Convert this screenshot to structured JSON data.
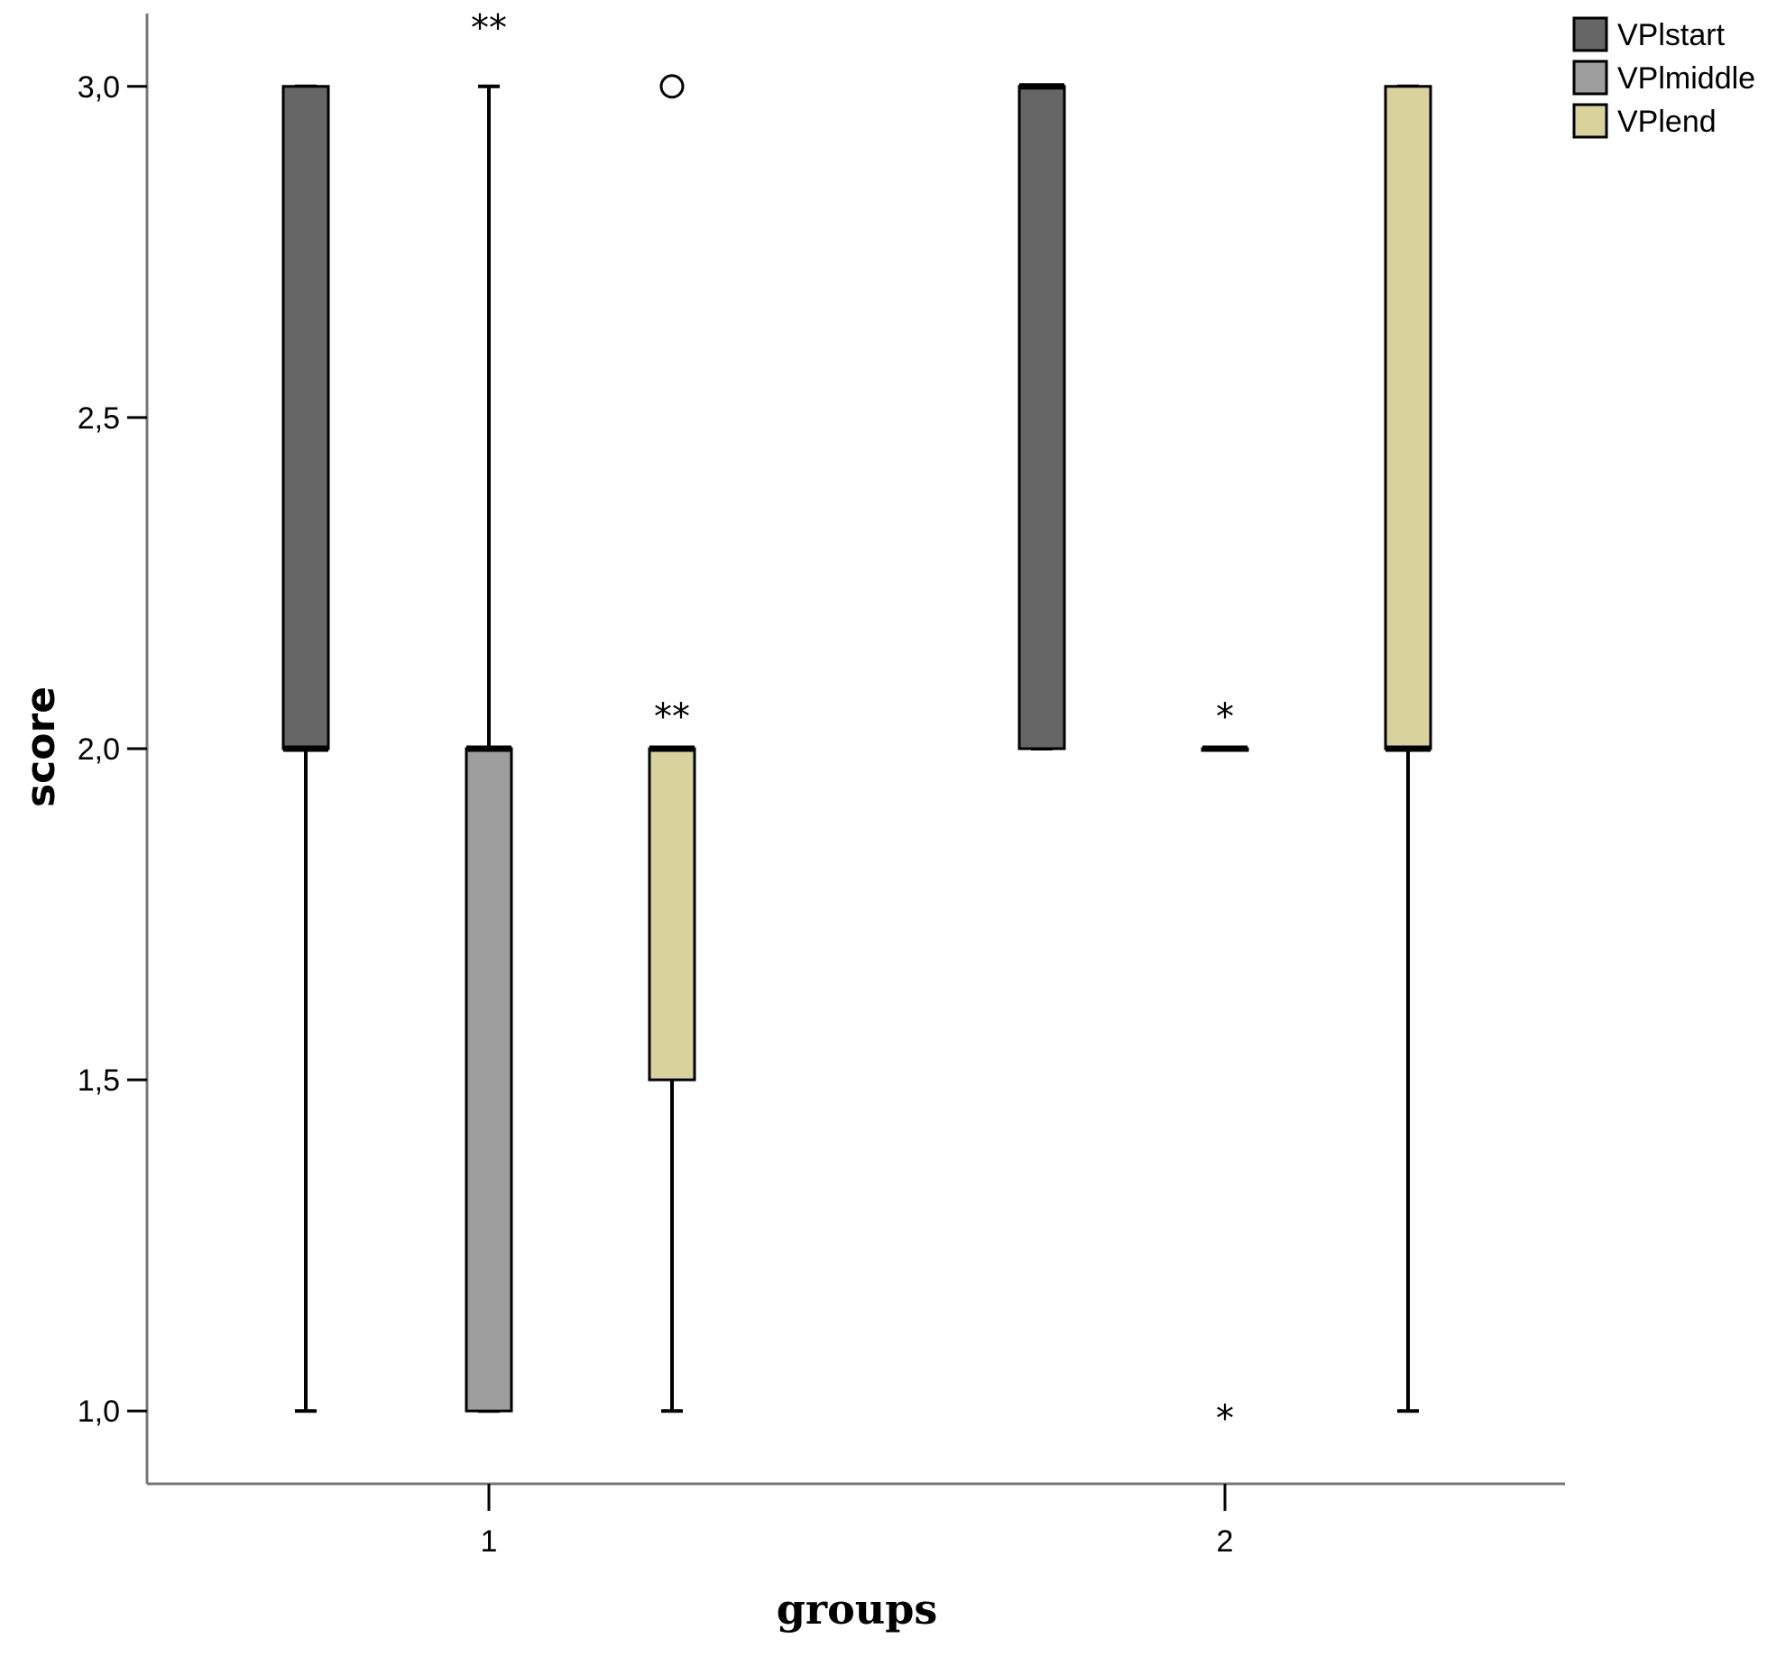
{
  "chart_data": {
    "type": "boxplot",
    "title": "",
    "xlabel": "groups",
    "ylabel": "score",
    "ylim": [
      0.89,
      3.11
    ],
    "yticks": [
      "1,0",
      "1,5",
      "2,0",
      "2,5",
      "3,0"
    ],
    "ytick_values": [
      1.0,
      1.5,
      2.0,
      2.5,
      3.0
    ],
    "categories": [
      "1",
      "2"
    ],
    "legend_position": "top-right",
    "series": [
      {
        "name": "VPlstart",
        "color": "#666666",
        "boxes": [
          {
            "min": 1.0,
            "q1": 2.0,
            "median": 2.0,
            "q3": 3.0,
            "max": 3.0,
            "outliers": []
          },
          {
            "min": 2.0,
            "q1": 2.0,
            "median": 3.0,
            "q3": 3.0,
            "max": 3.0,
            "outliers": []
          }
        ]
      },
      {
        "name": "VPlmiddle",
        "color": "#9e9e9e",
        "boxes": [
          {
            "min": 1.0,
            "q1": 1.0,
            "median": 2.0,
            "q3": 2.0,
            "max": 3.0,
            "outliers": [
              {
                "value": 3.1,
                "symbol": "**"
              }
            ]
          },
          {
            "min": 2.0,
            "q1": 2.0,
            "median": 2.0,
            "q3": 2.0,
            "max": 2.0,
            "outliers": [
              {
                "value": 2.06,
                "symbol": "*"
              },
              {
                "value": 1.0,
                "symbol": "*"
              }
            ]
          }
        ]
      },
      {
        "name": "VPlend",
        "color": "#d8d29c",
        "boxes": [
          {
            "min": 1.0,
            "q1": 1.5,
            "median": 2.0,
            "q3": 2.0,
            "max": 2.0,
            "outliers": [
              {
                "value": 3.0,
                "symbol": "o"
              },
              {
                "value": 2.06,
                "symbol": "**"
              }
            ]
          },
          {
            "min": 1.0,
            "q1": 2.0,
            "median": 2.0,
            "q3": 3.0,
            "max": 3.0,
            "outliers": []
          }
        ]
      }
    ]
  }
}
